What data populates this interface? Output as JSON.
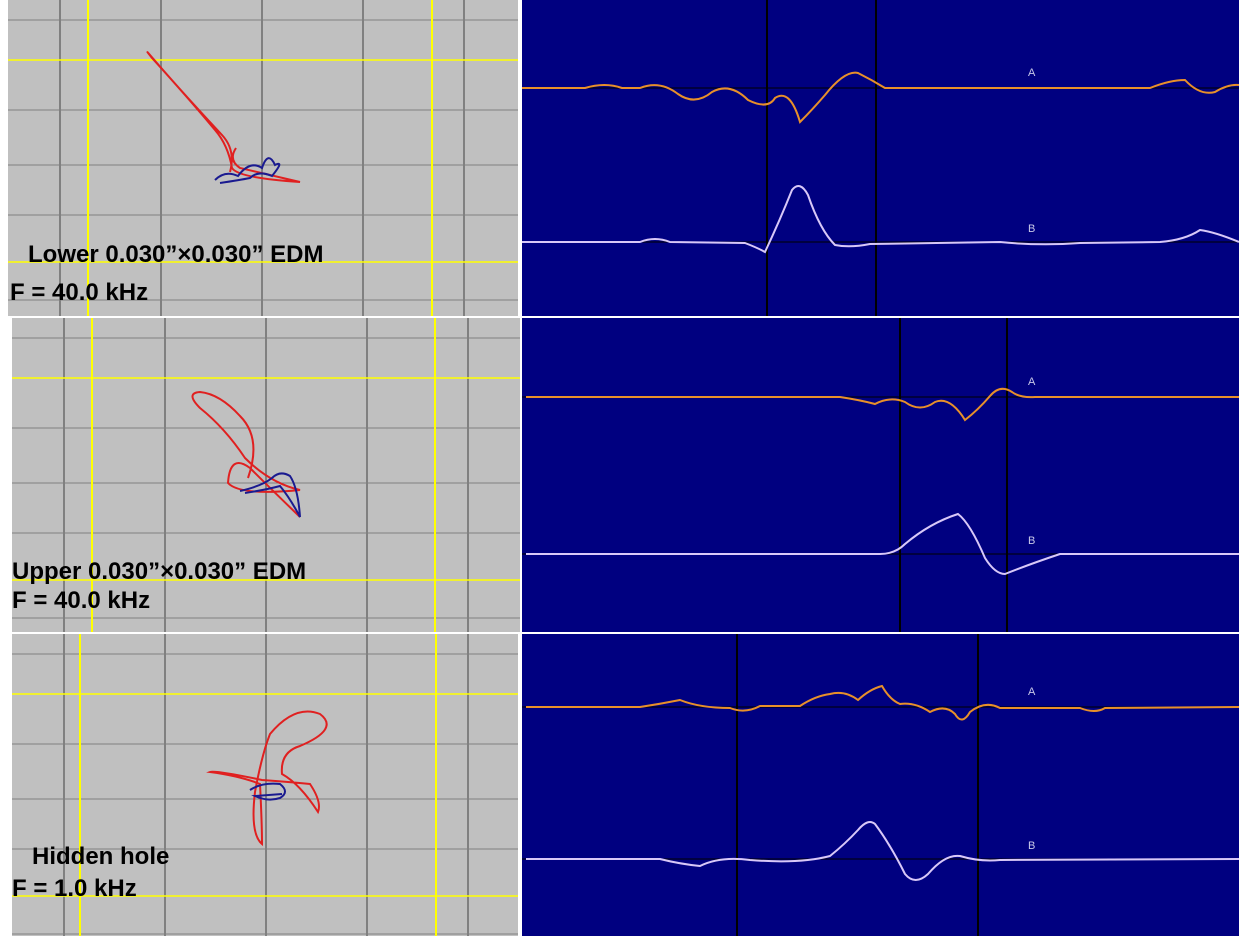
{
  "panels": [
    {
      "label": "Lower 0.030”×0.030” EDM",
      "frequency": "F = 40.0 kHz",
      "channels": [
        "A",
        "B"
      ]
    },
    {
      "label": "Upper 0.030”×0.030” EDM",
      "frequency": "F = 40.0 kHz",
      "channels": [
        "A",
        "B"
      ]
    },
    {
      "label": "Hidden hole",
      "frequency": "F = 1.0 kHz",
      "channels": [
        "A",
        "B"
      ]
    }
  ]
}
